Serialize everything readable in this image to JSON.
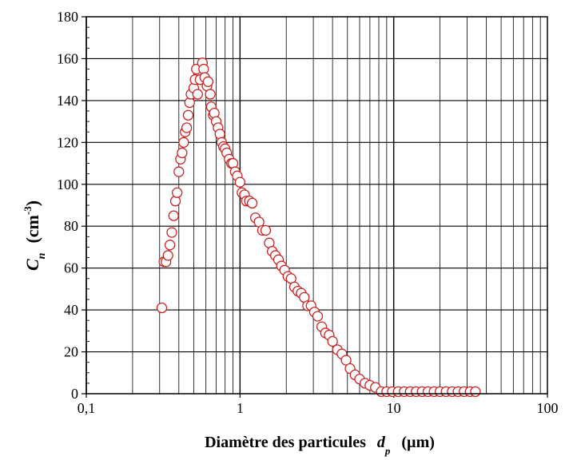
{
  "chart_data": {
    "type": "scatter",
    "title": "",
    "xlabel": {
      "main": "Diamètre des particules",
      "symbol": "d",
      "subscript": "p",
      "unit": "(µm)"
    },
    "ylabel": {
      "symbol": "C",
      "subscript": "n",
      "unit_open": "(cm",
      "unit_exp": "-3",
      "unit_close": ")"
    },
    "x_scale": "log",
    "xlim": [
      0.1,
      100
    ],
    "ylim": [
      0,
      180
    ],
    "x_ticks": [
      {
        "value": 0.1,
        "label": "0,1"
      },
      {
        "value": 1,
        "label": "1"
      },
      {
        "value": 10,
        "label": "10"
      },
      {
        "value": 100,
        "label": "100"
      }
    ],
    "y_ticks": [
      {
        "value": 0,
        "label": "0"
      },
      {
        "value": 20,
        "label": "20"
      },
      {
        "value": 40,
        "label": "40"
      },
      {
        "value": 60,
        "label": "60"
      },
      {
        "value": 80,
        "label": "80"
      },
      {
        "value": 100,
        "label": "100"
      },
      {
        "value": 120,
        "label": "120"
      },
      {
        "value": 140,
        "label": "140"
      },
      {
        "value": 160,
        "label": "160"
      },
      {
        "value": 180,
        "label": "180"
      }
    ],
    "grid": true,
    "marker_color": "#cc2222",
    "points": [
      [
        0.31,
        41
      ],
      [
        0.32,
        63
      ],
      [
        0.33,
        63
      ],
      [
        0.34,
        66
      ],
      [
        0.35,
        71
      ],
      [
        0.36,
        77
      ],
      [
        0.37,
        85
      ],
      [
        0.38,
        92
      ],
      [
        0.39,
        96
      ],
      [
        0.4,
        106
      ],
      [
        0.41,
        112
      ],
      [
        0.42,
        115
      ],
      [
        0.43,
        120
      ],
      [
        0.44,
        125
      ],
      [
        0.45,
        127
      ],
      [
        0.46,
        133
      ],
      [
        0.47,
        139
      ],
      [
        0.48,
        143
      ],
      [
        0.5,
        146
      ],
      [
        0.51,
        150
      ],
      [
        0.52,
        155
      ],
      [
        0.53,
        143
      ],
      [
        0.55,
        150
      ],
      [
        0.57,
        158
      ],
      [
        0.58,
        155
      ],
      [
        0.59,
        151
      ],
      [
        0.61,
        147
      ],
      [
        0.62,
        149
      ],
      [
        0.64,
        143
      ],
      [
        0.65,
        137
      ],
      [
        0.67,
        133
      ],
      [
        0.68,
        134
      ],
      [
        0.7,
        130
      ],
      [
        0.72,
        127
      ],
      [
        0.74,
        124
      ],
      [
        0.76,
        120
      ],
      [
        0.78,
        118
      ],
      [
        0.8,
        117
      ],
      [
        0.82,
        115
      ],
      [
        0.85,
        112
      ],
      [
        0.88,
        110
      ],
      [
        0.9,
        110
      ],
      [
        0.93,
        106
      ],
      [
        0.96,
        104
      ],
      [
        1.0,
        101
      ],
      [
        1.03,
        96
      ],
      [
        1.07,
        95
      ],
      [
        1.1,
        92
      ],
      [
        1.15,
        92
      ],
      [
        1.2,
        91
      ],
      [
        1.26,
        84
      ],
      [
        1.33,
        82
      ],
      [
        1.4,
        78
      ],
      [
        1.47,
        78
      ],
      [
        1.55,
        72
      ],
      [
        1.62,
        68
      ],
      [
        1.7,
        66
      ],
      [
        1.78,
        64
      ],
      [
        1.86,
        61
      ],
      [
        1.95,
        59
      ],
      [
        2.05,
        56
      ],
      [
        2.15,
        55
      ],
      [
        2.26,
        51
      ],
      [
        2.38,
        49
      ],
      [
        2.5,
        48
      ],
      [
        2.62,
        46
      ],
      [
        2.75,
        42
      ],
      [
        2.9,
        42
      ],
      [
        3.05,
        39
      ],
      [
        3.2,
        37
      ],
      [
        3.4,
        32
      ],
      [
        3.6,
        29
      ],
      [
        3.8,
        28
      ],
      [
        4.0,
        25
      ],
      [
        4.3,
        21
      ],
      [
        4.6,
        19
      ],
      [
        4.9,
        16
      ],
      [
        5.2,
        12
      ],
      [
        5.6,
        9
      ],
      [
        6.0,
        7
      ],
      [
        6.5,
        5
      ],
      [
        7.0,
        4
      ],
      [
        7.6,
        3
      ],
      [
        8.3,
        1
      ],
      [
        9.0,
        1
      ],
      [
        9.8,
        1
      ],
      [
        10.7,
        1
      ],
      [
        11.7,
        1
      ],
      [
        12.8,
        1
      ],
      [
        14.0,
        1
      ],
      [
        15.3,
        1
      ],
      [
        16.7,
        1
      ],
      [
        18.3,
        1
      ],
      [
        20.0,
        1
      ],
      [
        21.9,
        1
      ],
      [
        24.0,
        1
      ],
      [
        26.2,
        1
      ],
      [
        28.7,
        1
      ],
      [
        31.4,
        1
      ],
      [
        34.0,
        1
      ]
    ]
  }
}
